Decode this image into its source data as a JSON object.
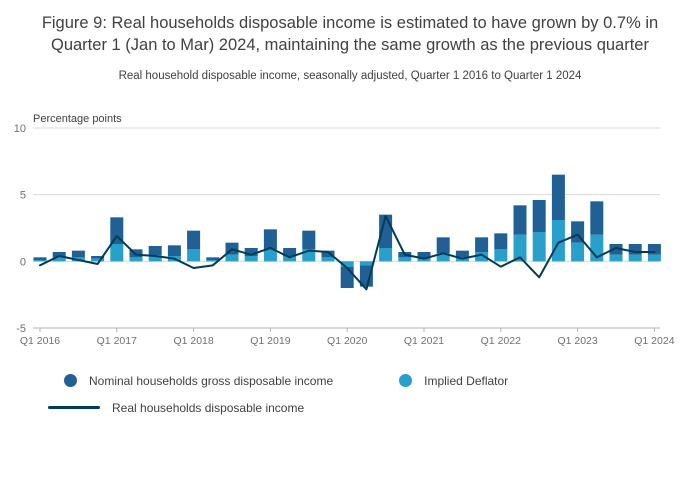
{
  "chart_data": {
    "type": "bar",
    "stacked": true,
    "combo": "stacked bars with overlaid line",
    "title": "Figure 9: Real households disposable income is estimated to have grown by 0.7% in Quarter 1 (Jan to Mar) 2024, maintaining the same growth as the previous quarter",
    "subtitle": "Real household disposable income, seasonally adjusted, Quarter 1 2016 to Quarter 1 2024",
    "ylabel": "Percentage points",
    "ylim": [
      -5,
      10
    ],
    "y_ticks": [
      10,
      5,
      0,
      -5
    ],
    "grid": "horizontal gridlines on",
    "legend_position": "bottom-left",
    "categories": [
      "Q1 2016",
      "Q2 2016",
      "Q3 2016",
      "Q4 2016",
      "Q1 2017",
      "Q2 2017",
      "Q3 2017",
      "Q4 2017",
      "Q1 2018",
      "Q2 2018",
      "Q3 2018",
      "Q4 2018",
      "Q1 2019",
      "Q2 2019",
      "Q3 2019",
      "Q4 2019",
      "Q1 2020",
      "Q2 2020",
      "Q3 2020",
      "Q4 2020",
      "Q1 2021",
      "Q2 2021",
      "Q3 2021",
      "Q4 2021",
      "Q1 2022",
      "Q2 2022",
      "Q3 2022",
      "Q4 2022",
      "Q1 2023",
      "Q2 2023",
      "Q3 2023",
      "Q4 2023",
      "Q1 2024"
    ],
    "x_ticks": [
      {
        "index": 0,
        "label": "Q1 2016"
      },
      {
        "index": 4,
        "label": "Q1 2017"
      },
      {
        "index": 8,
        "label": "Q1 2018"
      },
      {
        "index": 12,
        "label": "Q1 2019"
      },
      {
        "index": 16,
        "label": "Q1 2020"
      },
      {
        "index": 20,
        "label": "Q1 2021"
      },
      {
        "index": 24,
        "label": "Q1 2022"
      },
      {
        "index": 28,
        "label": "Q1 2023"
      },
      {
        "index": 32,
        "label": "Q1 2024"
      }
    ],
    "series": [
      {
        "name": "Implied Deflator",
        "type": "bar",
        "color": "#27a0cc",
        "values": [
          0.1,
          0.3,
          0.3,
          0.2,
          1.3,
          0.3,
          0.45,
          0.4,
          0.9,
          0.1,
          0.5,
          0.4,
          0.9,
          0.4,
          0.9,
          0.3,
          -0.4,
          -0.3,
          1.0,
          0.3,
          0.2,
          0.6,
          0.3,
          0.7,
          0.9,
          2.0,
          2.2,
          3.1,
          1.4,
          2.0,
          0.5,
          0.5,
          0.5
        ]
      },
      {
        "name": "Nominal households gross disposable income",
        "type": "bar",
        "color": "#206095",
        "values": [
          0.2,
          0.4,
          0.5,
          0.2,
          2.0,
          0.6,
          0.7,
          0.8,
          1.4,
          0.2,
          0.9,
          0.6,
          1.5,
          0.6,
          1.4,
          0.5,
          -1.6,
          -1.6,
          2.5,
          0.4,
          0.5,
          1.2,
          0.5,
          1.1,
          1.2,
          2.2,
          2.4,
          3.4,
          1.6,
          2.5,
          0.8,
          0.8,
          0.8
        ]
      }
    ],
    "line_series": {
      "name": "Real households disposable income",
      "type": "line",
      "color": "#003c57",
      "values": [
        -0.3,
        0.4,
        0.1,
        -0.2,
        1.9,
        0.5,
        0.4,
        0.2,
        -0.5,
        -0.3,
        0.9,
        0.5,
        1.0,
        0.3,
        0.8,
        0.7,
        -0.5,
        -2.1,
        3.4,
        0.5,
        0.2,
        0.6,
        0.2,
        0.5,
        -0.4,
        0.3,
        -1.2,
        1.4,
        2.0,
        0.3,
        1.0,
        0.7,
        0.7
      ]
    },
    "colors": {
      "grid": "#d9d9d9",
      "axis": "#b3b3b3",
      "tick_label": "#707070",
      "text": "#414042"
    }
  }
}
